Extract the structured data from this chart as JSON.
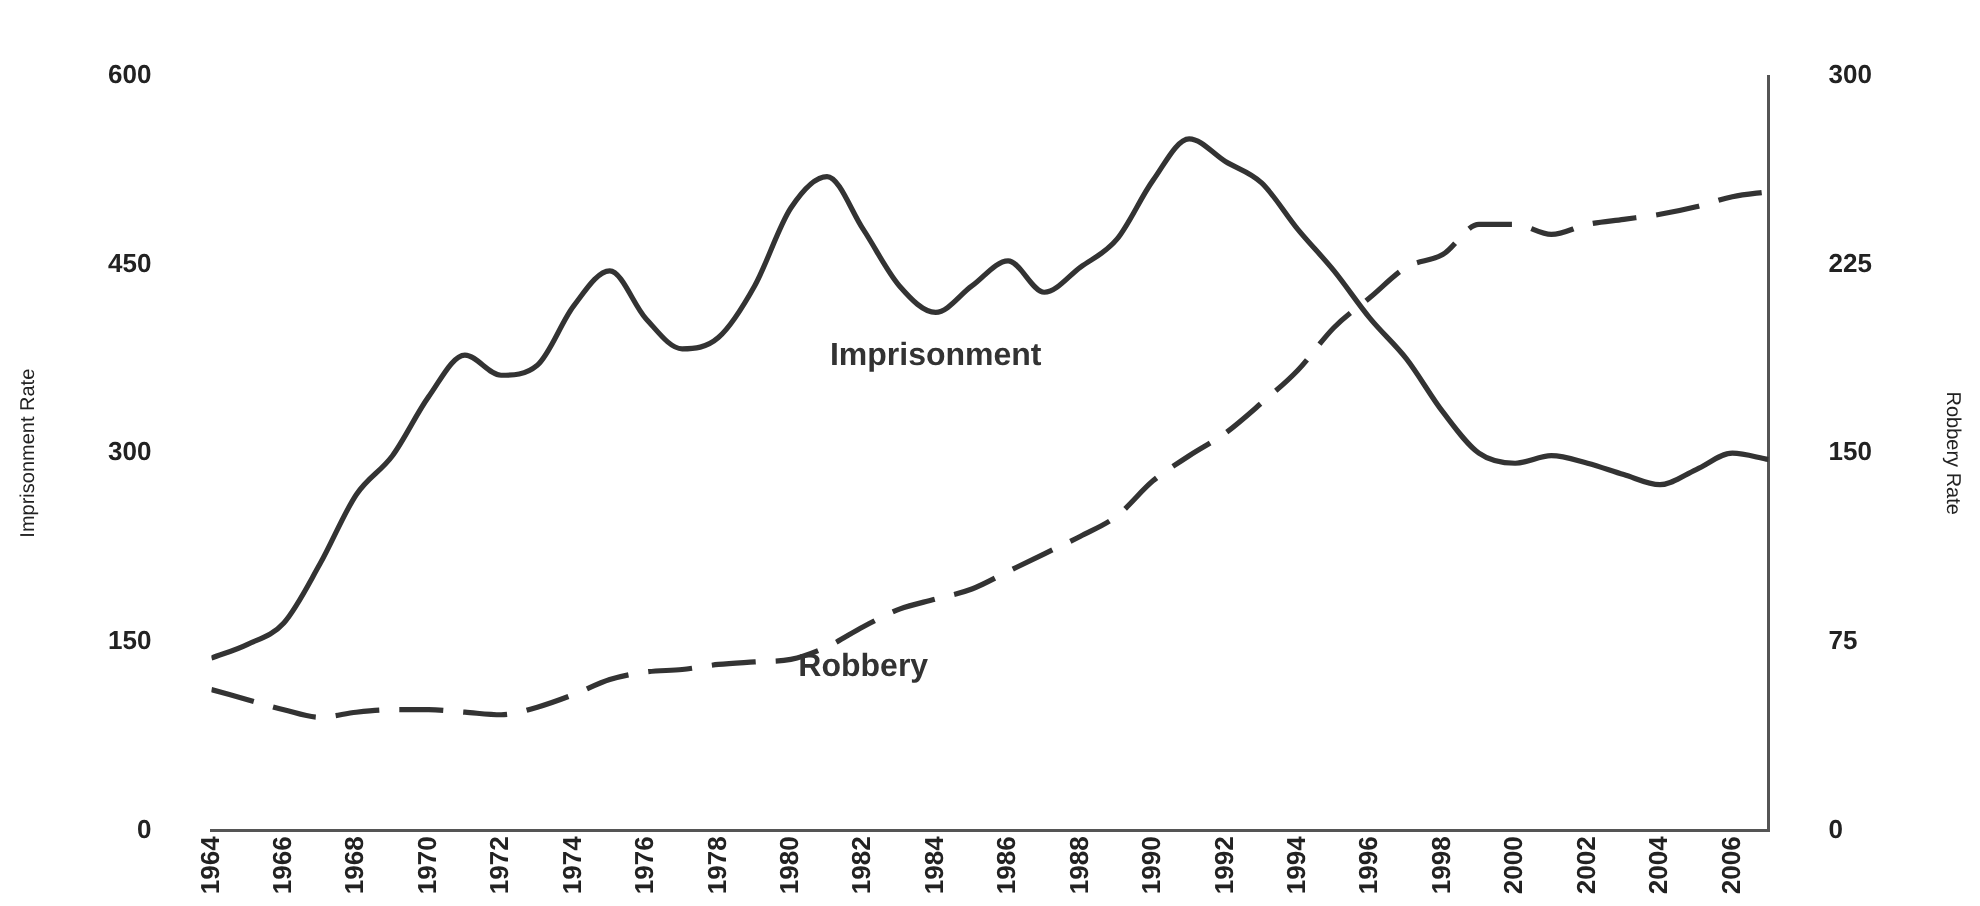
{
  "chart_data": {
    "type": "line",
    "ylabel": "Imprisonment Rate",
    "y2label": "Robbery Rate",
    "x": [
      1964,
      1965,
      1966,
      1967,
      1968,
      1969,
      1970,
      1971,
      1972,
      1973,
      1974,
      1975,
      1976,
      1977,
      1978,
      1979,
      1980,
      1981,
      1982,
      1983,
      1984,
      1985,
      1986,
      1987,
      1988,
      1989,
      1990,
      1991,
      1992,
      1993,
      1994,
      1995,
      1996,
      1997,
      1998,
      1999,
      2000,
      2001,
      2002,
      2003,
      2004,
      2005,
      2006,
      2007
    ],
    "series": [
      {
        "name": "Imprisonment",
        "color": "#333333",
        "line_style": "solid",
        "values": [
          137,
          148,
          165,
          212,
          267,
          298,
          345,
          378,
          362,
          370,
          417,
          445,
          407,
          383,
          392,
          433,
          495,
          520,
          478,
          433,
          412,
          433,
          453,
          428,
          448,
          470,
          517,
          550,
          532,
          515,
          478,
          445,
          407,
          375,
          333,
          300,
          292,
          298,
          292,
          283,
          275,
          287,
          300,
          295
        ]
      },
      {
        "name": "Robbery",
        "color": "#333333",
        "line_style": "dashed",
        "axis": "y2",
        "values": [
          56,
          52,
          48,
          45,
          47,
          48,
          48,
          47,
          46,
          49,
          54,
          60,
          63,
          64,
          66,
          67,
          68,
          73,
          81,
          88,
          92,
          96,
          103,
          110,
          117,
          125,
          139,
          149,
          158,
          170,
          183,
          200,
          212,
          224,
          229,
          241,
          241,
          237,
          241,
          243,
          245,
          248,
          252,
          254
        ]
      }
    ],
    "xlim": [
      1964,
      2007
    ],
    "xticks": [
      1964,
      1966,
      1968,
      1970,
      1972,
      1974,
      1976,
      1978,
      1980,
      1982,
      1984,
      1986,
      1988,
      1990,
      1992,
      1994,
      1996,
      1998,
      2000,
      2002,
      2004,
      2006
    ],
    "ylim": [
      0,
      600
    ],
    "yticks": [
      0,
      150,
      300,
      450,
      600
    ],
    "y2lim": [
      0,
      300
    ],
    "y2ticks": [
      0,
      75,
      150,
      225,
      300
    ],
    "grid": false,
    "legend": false,
    "marker": "none"
  }
}
